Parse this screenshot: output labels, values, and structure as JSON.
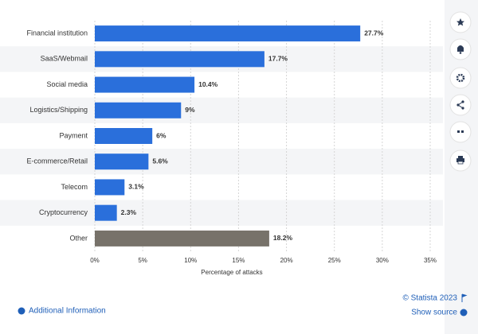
{
  "chart_data": {
    "type": "bar",
    "orientation": "horizontal",
    "categories": [
      "Financial institution",
      "SaaS/Webmail",
      "Social media",
      "Logistics/Shipping",
      "Payment",
      "E-commerce/Retail",
      "Telecom",
      "Cryptocurrency",
      "Other"
    ],
    "values": [
      27.7,
      17.7,
      10.4,
      9,
      6,
      5.6,
      3.1,
      2.3,
      18.2
    ],
    "value_labels": [
      "27.7%",
      "17.7%",
      "10.4%",
      "9%",
      "6%",
      "5.6%",
      "3.1%",
      "2.3%",
      "18.2%"
    ],
    "colors": [
      "#2a6fdb",
      "#2a6fdb",
      "#2a6fdb",
      "#2a6fdb",
      "#2a6fdb",
      "#2a6fdb",
      "#2a6fdb",
      "#2a6fdb",
      "#77726a"
    ],
    "xlabel": "Percentage of attacks",
    "xlim": [
      0,
      35
    ],
    "xticks": [
      {
        "value": 0,
        "label": "0%"
      },
      {
        "value": 5,
        "label": "5%"
      },
      {
        "value": 10,
        "label": "10%"
      },
      {
        "value": 15,
        "label": "15%"
      },
      {
        "value": 20,
        "label": "20%"
      },
      {
        "value": 25,
        "label": "25%"
      },
      {
        "value": 30,
        "label": "30%"
      },
      {
        "value": 35,
        "label": "35%"
      }
    ],
    "grid": true
  },
  "footer": {
    "copyright": "© Statista 2023",
    "source": "Show source",
    "info": "Additional Information"
  }
}
